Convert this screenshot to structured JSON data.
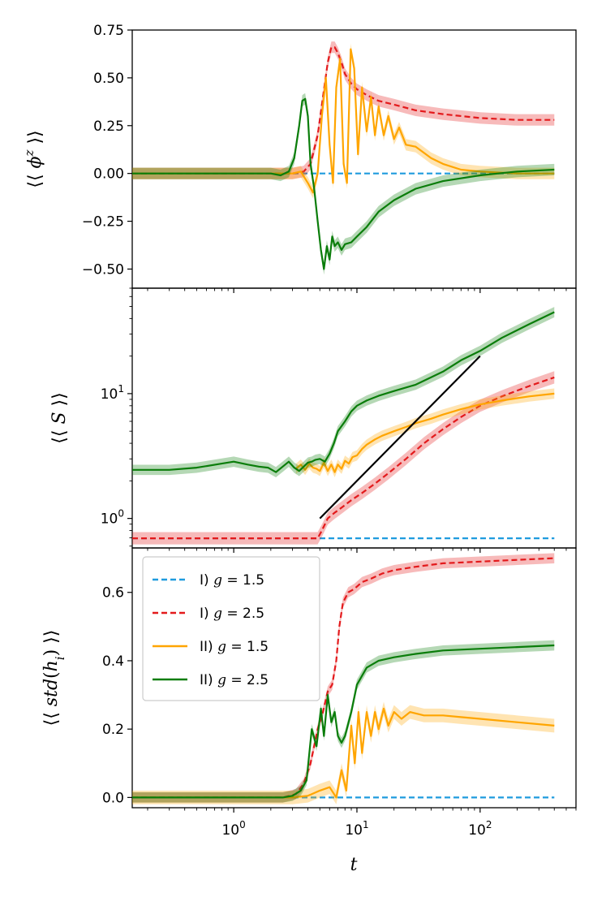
{
  "chart_data": [
    {
      "type": "line",
      "panel": "top",
      "ylabel": "⟨⟨ φ^z ⟩⟩",
      "xscale": "log",
      "yscale": "linear",
      "xlim": [
        0.15,
        600
      ],
      "ylim": [
        -0.6,
        0.75
      ],
      "yticks": [
        -0.5,
        -0.25,
        0.0,
        0.25,
        0.5,
        0.75
      ],
      "ytick_labels": [
        "−0.50",
        "−0.25",
        "0.00",
        "0.25",
        "0.50",
        "0.75"
      ],
      "series": [
        {
          "name": "I) g = 1.5",
          "color": "#1f9bde",
          "dash": true,
          "x": [
            0.15,
            1,
            5,
            10,
            100,
            400
          ],
          "y": [
            0,
            0,
            0,
            0,
            0,
            0
          ]
        },
        {
          "name": "I) g = 2.5",
          "color": "#e31a1c",
          "dash": true,
          "band": 0.03,
          "x": [
            0.15,
            1,
            2,
            3,
            3.7,
            4.2,
            4.8,
            5.3,
            5.8,
            6.2,
            6.6,
            7,
            7.5,
            8,
            9,
            10,
            12,
            15,
            20,
            30,
            50,
            100,
            200,
            400
          ],
          "y": [
            0,
            0,
            0,
            0,
            0.01,
            0.05,
            0.2,
            0.4,
            0.58,
            0.66,
            0.66,
            0.63,
            0.58,
            0.52,
            0.47,
            0.44,
            0.41,
            0.38,
            0.36,
            0.33,
            0.31,
            0.29,
            0.28,
            0.28
          ]
        },
        {
          "name": "II) g = 1.5",
          "color": "#ffa500",
          "dash": false,
          "band": 0.03,
          "x": [
            0.15,
            1,
            2,
            3,
            3.5,
            4,
            4.4,
            4.8,
            5.2,
            5.6,
            6,
            6.4,
            6.8,
            7.3,
            7.8,
            8.3,
            8.9,
            9.5,
            10.2,
            11,
            12,
            13,
            14,
            15,
            16.5,
            18,
            20,
            22,
            25,
            30,
            40,
            50,
            70,
            100,
            200,
            400
          ],
          "y": [
            0,
            0,
            0,
            0,
            0.01,
            -0.05,
            -0.1,
            0.0,
            0.3,
            0.5,
            0.15,
            -0.05,
            0.45,
            0.6,
            0.05,
            -0.05,
            0.65,
            0.55,
            0.1,
            0.45,
            0.22,
            0.4,
            0.2,
            0.35,
            0.2,
            0.3,
            0.18,
            0.24,
            0.15,
            0.14,
            0.08,
            0.05,
            0.02,
            0.01,
            0.0,
            0.0
          ]
        },
        {
          "name": "II) g = 2.5",
          "color": "#0a7d0a",
          "dash": false,
          "band": 0.03,
          "x": [
            0.15,
            1,
            2,
            2.4,
            2.8,
            3.1,
            3.4,
            3.6,
            3.8,
            4.0,
            4.2,
            4.5,
            4.8,
            5.1,
            5.4,
            5.7,
            6.0,
            6.3,
            6.6,
            7.0,
            7.5,
            8,
            9,
            10,
            12,
            15,
            20,
            30,
            50,
            100,
            200,
            400
          ],
          "y": [
            0,
            0,
            0,
            -0.01,
            0.01,
            0.08,
            0.25,
            0.38,
            0.39,
            0.3,
            0.05,
            -0.08,
            -0.25,
            -0.4,
            -0.5,
            -0.38,
            -0.45,
            -0.33,
            -0.38,
            -0.36,
            -0.4,
            -0.37,
            -0.36,
            -0.33,
            -0.28,
            -0.2,
            -0.14,
            -0.08,
            -0.04,
            -0.01,
            0.01,
            0.02
          ]
        }
      ]
    },
    {
      "type": "line",
      "panel": "middle",
      "ylabel": "⟨⟨ S ⟩⟩",
      "xscale": "log",
      "yscale": "log",
      "xlim": [
        0.15,
        600
      ],
      "ylim": [
        0.58,
        70
      ],
      "yticks": [
        1,
        10
      ],
      "ytick_labels": [
        "10^0",
        "10^1"
      ],
      "series": [
        {
          "name": "I) g = 1.5",
          "color": "#1f9bde",
          "dash": true,
          "x": [
            0.15,
            1,
            5,
            10,
            100,
            400
          ],
          "y": [
            0.693,
            0.693,
            0.693,
            0.693,
            0.693,
            0.693
          ]
        },
        {
          "name": "I) g = 2.5",
          "color": "#e31a1c",
          "dash": true,
          "band": 0.12,
          "x": [
            0.15,
            1,
            3,
            4.8,
            5.2,
            5.8,
            6.5,
            7.5,
            9,
            11,
            14,
            18,
            25,
            35,
            50,
            70,
            100,
            150,
            250,
            400
          ],
          "y": [
            0.693,
            0.693,
            0.693,
            0.693,
            0.8,
            1.0,
            1.1,
            1.22,
            1.4,
            1.6,
            1.9,
            2.3,
            3.0,
            4.0,
            5.2,
            6.5,
            8.0,
            9.5,
            11.5,
            13.5
          ]
        },
        {
          "name": "II) g = 1.5",
          "color": "#ffa500",
          "dash": false,
          "band": 0.1,
          "x": [
            3.2,
            3.5,
            3.8,
            4.1,
            4.4,
            4.7,
            5,
            5.4,
            5.8,
            6.2,
            6.6,
            7,
            7.5,
            8,
            8.6,
            9.2,
            10,
            11,
            12,
            14,
            16,
            20,
            25,
            30,
            40,
            50,
            70,
            100,
            150,
            250,
            400
          ],
          "y": [
            2.5,
            2.7,
            2.45,
            2.75,
            2.55,
            2.5,
            2.4,
            2.8,
            2.4,
            2.7,
            2.35,
            2.7,
            2.5,
            2.9,
            2.75,
            3.1,
            3.2,
            3.6,
            3.9,
            4.3,
            4.6,
            5.0,
            5.4,
            5.8,
            6.3,
            6.8,
            7.5,
            8.2,
            8.8,
            9.5,
            10
          ]
        },
        {
          "name": "II) g = 2.5",
          "color": "#0a7d0a",
          "dash": false,
          "band": 0.1,
          "x": [
            0.15,
            0.3,
            0.5,
            0.8,
            1.0,
            1.3,
            1.6,
            1.9,
            2.2,
            2.5,
            2.8,
            3.1,
            3.4,
            3.7,
            4.0,
            4.3,
            4.6,
            5.0,
            5.5,
            6,
            6.5,
            7,
            8,
            9,
            10,
            12,
            15,
            20,
            30,
            50,
            70,
            100,
            150,
            250,
            400
          ],
          "y": [
            2.45,
            2.45,
            2.55,
            2.75,
            2.85,
            2.7,
            2.6,
            2.55,
            2.35,
            2.6,
            2.85,
            2.55,
            2.4,
            2.6,
            2.8,
            2.85,
            2.95,
            3.0,
            2.85,
            3.3,
            4.0,
            5.0,
            6.0,
            7.2,
            8.0,
            8.8,
            9.6,
            10.5,
            11.8,
            15.0,
            18.5,
            22.0,
            28.0,
            36.0,
            45.0
          ]
        },
        {
          "name": "fit",
          "color": "#000000",
          "dash": false,
          "width": 2.2,
          "x": [
            5,
            100
          ],
          "y": [
            1.0,
            20
          ]
        }
      ]
    },
    {
      "type": "line",
      "panel": "bottom",
      "ylabel": "⟨⟨ std(h_i) ⟩⟩",
      "xlabel": "t",
      "xscale": "log",
      "yscale": "linear",
      "xlim": [
        0.15,
        600
      ],
      "ylim": [
        -0.03,
        0.73
      ],
      "yticks": [
        0.0,
        0.2,
        0.4,
        0.6
      ],
      "ytick_labels": [
        "0.0",
        "0.2",
        "0.4",
        "0.6"
      ],
      "xticks": [
        1,
        10,
        100
      ],
      "xtick_labels": [
        "10^0",
        "10^1",
        "10^2"
      ],
      "series": [
        {
          "name": "I) g = 1.5",
          "color": "#1f9bde",
          "dash": true,
          "x": [
            0.15,
            1,
            5,
            10,
            100,
            400
          ],
          "y": [
            0,
            0,
            0,
            0,
            0,
            0
          ]
        },
        {
          "name": "I) g = 2.5",
          "color": "#e31a1c",
          "dash": true,
          "band": 0.015,
          "x": [
            0.15,
            1,
            2.5,
            3.2,
            3.7,
            4.2,
            4.8,
            5.3,
            5.8,
            6.3,
            6.8,
            7.2,
            7.7,
            8.5,
            9.5,
            11,
            13,
            16,
            20,
            30,
            50,
            100,
            200,
            400
          ],
          "y": [
            0,
            0,
            0,
            0.01,
            0.04,
            0.1,
            0.2,
            0.25,
            0.31,
            0.33,
            0.4,
            0.5,
            0.57,
            0.6,
            0.61,
            0.63,
            0.64,
            0.655,
            0.665,
            0.675,
            0.685,
            0.69,
            0.695,
            0.7
          ]
        },
        {
          "name": "II) g = 1.5",
          "color": "#ffa500",
          "dash": false,
          "band": 0.02,
          "x": [
            0.15,
            1,
            3,
            4,
            5,
            6,
            6.8,
            7.5,
            8.2,
            9,
            9.6,
            10.3,
            11,
            12,
            13,
            14,
            15,
            16.5,
            18,
            20,
            23,
            27,
            35,
            50,
            70,
            100,
            200,
            400
          ],
          "y": [
            0,
            0,
            0,
            0.005,
            0.02,
            0.03,
            0.0,
            0.08,
            0.02,
            0.21,
            0.1,
            0.25,
            0.13,
            0.25,
            0.18,
            0.25,
            0.2,
            0.26,
            0.21,
            0.25,
            0.23,
            0.25,
            0.24,
            0.24,
            0.235,
            0.23,
            0.22,
            0.21
          ]
        },
        {
          "name": "II) g = 2.5",
          "color": "#0a7d0a",
          "dash": false,
          "band": 0.015,
          "x": [
            0.15,
            1,
            2.5,
            3.0,
            3.5,
            3.9,
            4.3,
            4.7,
            5.1,
            5.4,
            5.8,
            6.2,
            6.6,
            7.0,
            7.5,
            8,
            9,
            10,
            12,
            15,
            20,
            30,
            50,
            100,
            200,
            400
          ],
          "y": [
            0,
            0,
            0,
            0.005,
            0.02,
            0.05,
            0.2,
            0.15,
            0.26,
            0.18,
            0.3,
            0.22,
            0.25,
            0.18,
            0.16,
            0.18,
            0.25,
            0.33,
            0.38,
            0.4,
            0.41,
            0.42,
            0.43,
            0.435,
            0.44,
            0.445
          ]
        }
      ],
      "legend": {
        "location": "upper-left",
        "entries": [
          {
            "prefix": "I) ",
            "var": "g",
            "value": " = 1.5",
            "color": "#1f9bde",
            "dash": true
          },
          {
            "prefix": "I) ",
            "var": "g",
            "value": " = 2.5",
            "color": "#e31a1c",
            "dash": true
          },
          {
            "prefix": "II) ",
            "var": "g",
            "value": " = 1.5",
            "color": "#ffa500",
            "dash": false
          },
          {
            "prefix": "II) ",
            "var": "g",
            "value": " = 2.5",
            "color": "#0a7d0a",
            "dash": false
          }
        ]
      }
    }
  ]
}
